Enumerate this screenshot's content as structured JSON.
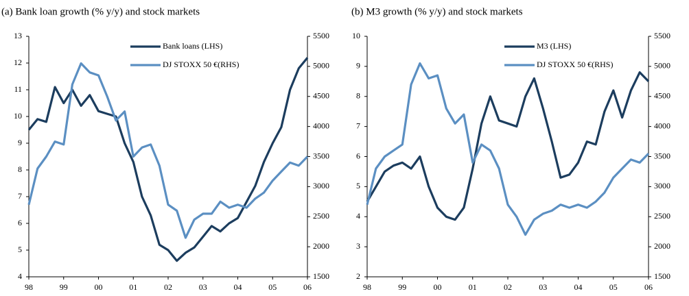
{
  "chart_data": [
    {
      "type": "line",
      "title": "(a) Bank loan growth (% y/y) and stock markets",
      "x": [
        1998,
        1998.25,
        1998.5,
        1998.75,
        1999,
        1999.25,
        1999.5,
        1999.75,
        2000,
        2000.25,
        2000.5,
        2000.75,
        2001,
        2001.25,
        2001.5,
        2001.75,
        2002,
        2002.25,
        2002.5,
        2002.75,
        2003,
        2003.25,
        2003.5,
        2003.75,
        2004,
        2004.25,
        2004.5,
        2004.75,
        2005,
        2005.25,
        2005.5,
        2005.75,
        2006
      ],
      "series": [
        {
          "name": "Bank loans (LHS)",
          "color": "#1c3d5e",
          "values": [
            9.5,
            9.9,
            9.8,
            11.1,
            10.5,
            11.0,
            10.4,
            10.8,
            10.2,
            10.1,
            10.0,
            9.0,
            8.3,
            7.0,
            6.3,
            5.2,
            5.0,
            4.6,
            4.9,
            5.1,
            5.5,
            5.9,
            5.7,
            6.0,
            6.2,
            6.8,
            7.4,
            8.3,
            9.0,
            9.6,
            11.0,
            11.8,
            12.2
          ]
        },
        {
          "name": "DJ STOXX 50 €(RHS)",
          "color": "#5b8fc2",
          "axis": "y2",
          "values": [
            2700,
            3300,
            3500,
            3750,
            3700,
            4700,
            5050,
            4900,
            4850,
            4500,
            4100,
            4250,
            3500,
            3650,
            3700,
            3350,
            2700,
            2600,
            2150,
            2450,
            2550,
            2550,
            2750,
            2650,
            2700,
            2650,
            2800,
            2900,
            3100,
            3250,
            3400,
            3350,
            3500
          ]
        }
      ],
      "xlim": [
        1998,
        2006
      ],
      "xticks": [
        {
          "value": 1998,
          "label": "98"
        },
        {
          "value": 1999,
          "label": "99"
        },
        {
          "value": 2000,
          "label": "00"
        },
        {
          "value": 2001,
          "label": "01"
        },
        {
          "value": 2002,
          "label": "02"
        },
        {
          "value": 2003,
          "label": "03"
        },
        {
          "value": 2004,
          "label": "04"
        },
        {
          "value": 2005,
          "label": "05"
        },
        {
          "value": 2006,
          "label": "06"
        }
      ],
      "ylim": [
        4,
        13
      ],
      "yticks": [
        4,
        5,
        6,
        7,
        8,
        9,
        10,
        11,
        12,
        13
      ],
      "y2lim": [
        1500,
        5500
      ],
      "y2ticks": [
        1500,
        2000,
        2500,
        3000,
        3500,
        4000,
        4500,
        5000,
        5500
      ]
    },
    {
      "type": "line",
      "title": "(b) M3 growth (% y/y) and stock markets",
      "x": [
        1998,
        1998.25,
        1998.5,
        1998.75,
        1999,
        1999.25,
        1999.5,
        1999.75,
        2000,
        2000.25,
        2000.5,
        2000.75,
        2001,
        2001.25,
        2001.5,
        2001.75,
        2002,
        2002.25,
        2002.5,
        2002.75,
        2003,
        2003.25,
        2003.5,
        2003.75,
        2004,
        2004.25,
        2004.5,
        2004.75,
        2005,
        2005.25,
        2005.5,
        2005.75,
        2006
      ],
      "series": [
        {
          "name": "M3 (LHS)",
          "color": "#1c3d5e",
          "values": [
            4.5,
            5.0,
            5.5,
            5.7,
            5.8,
            5.6,
            6.0,
            5.0,
            4.3,
            4.0,
            3.9,
            4.3,
            5.6,
            7.1,
            8.0,
            7.2,
            7.1,
            7.0,
            8.0,
            8.6,
            7.6,
            6.5,
            5.3,
            5.4,
            5.8,
            6.5,
            6.4,
            7.5,
            8.2,
            7.3,
            8.2,
            8.8,
            8.5
          ]
        },
        {
          "name": "DJ STOXX 50 €(RHS)",
          "color": "#5b8fc2",
          "axis": "y2",
          "values": [
            2700,
            3300,
            3500,
            3600,
            3700,
            4700,
            5050,
            4800,
            4850,
            4300,
            4050,
            4200,
            3400,
            3700,
            3600,
            3300,
            2700,
            2500,
            2200,
            2450,
            2550,
            2600,
            2700,
            2650,
            2700,
            2650,
            2750,
            2900,
            3150,
            3300,
            3450,
            3400,
            3550
          ]
        }
      ],
      "xlim": [
        1998,
        2006
      ],
      "xticks": [
        {
          "value": 1998,
          "label": "98"
        },
        {
          "value": 1999,
          "label": "99"
        },
        {
          "value": 2000,
          "label": "00"
        },
        {
          "value": 2001,
          "label": "01"
        },
        {
          "value": 2002,
          "label": "02"
        },
        {
          "value": 2003,
          "label": "03"
        },
        {
          "value": 2004,
          "label": "04"
        },
        {
          "value": 2005,
          "label": "05"
        },
        {
          "value": 2006,
          "label": "06"
        }
      ],
      "ylim": [
        2,
        10
      ],
      "yticks": [
        2,
        3,
        4,
        5,
        6,
        7,
        8,
        9,
        10
      ],
      "y2lim": [
        1500,
        5500
      ],
      "y2ticks": [
        1500,
        2000,
        2500,
        3000,
        3500,
        4000,
        4500,
        5000,
        5500
      ]
    }
  ]
}
